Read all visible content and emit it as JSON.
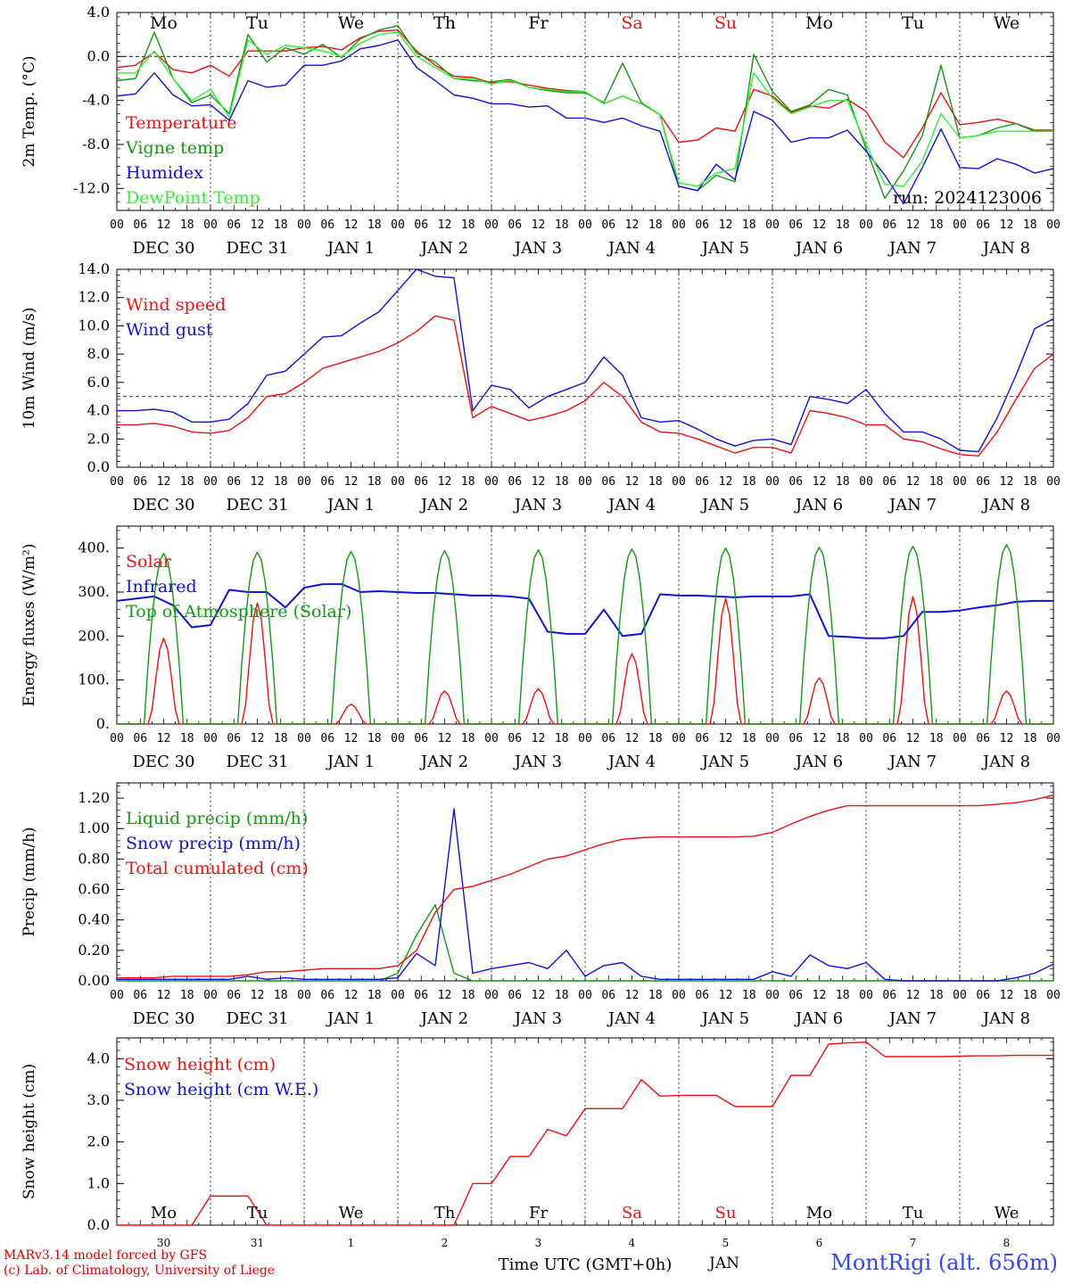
{
  "days": {
    "weekday_labels": [
      "Mo",
      "Tu",
      "We",
      "Th",
      "Fr",
      "Sa",
      "Su",
      "Mo",
      "Tu",
      "We"
    ],
    "weekend_flags": [
      false,
      false,
      false,
      false,
      false,
      true,
      true,
      false,
      false,
      false
    ],
    "date_labels": [
      "DEC 30",
      "DEC 31",
      "JAN  1",
      "JAN  2",
      "JAN  3",
      "JAN  4",
      "JAN  5",
      "JAN  6",
      "JAN  7",
      "JAN  8"
    ],
    "day_numbers": [
      "30",
      "31",
      "1",
      "2",
      "3",
      "4",
      "5",
      "6",
      "7",
      "8"
    ],
    "hour_ticks": [
      "00",
      "06",
      "12",
      "18"
    ],
    "end_tick": "00"
  },
  "colors": {
    "red": "#ee1111",
    "green": "#119911",
    "blue": "#1111dd",
    "lightgreen": "#33ee33",
    "weekday": "#000000",
    "weekend": "#ee1111"
  },
  "run_label": "run: 2024123006",
  "footer": {
    "model_line": "MARv3.14 model forced by GFS",
    "lab_line": "(c) Lab. of Climatology, University of Liege",
    "time_label": "Time UTC (GMT+0h)",
    "month_label": "JAN",
    "site_label": "MontRigi (alt. 656m)"
  },
  "chart_data": [
    {
      "type": "line",
      "ylabel": "2m Temp. (°C)",
      "ylim": [
        -14,
        4
      ],
      "y_ticks": [
        "4.0",
        "0.0",
        "-4.0",
        "-8.0",
        "-12.0"
      ],
      "reference_line": 0,
      "x_hours": "hours since Dec 30 00 UTC, every 6 h",
      "series": [
        {
          "name": "Temperature",
          "color": "red",
          "values": [
            -1.0,
            -0.8,
            0.4,
            -1.2,
            -1.5,
            -0.8,
            -1.8,
            0.5,
            0.5,
            0.5,
            0.8,
            0.9,
            0.6,
            1.7,
            2.3,
            2.4,
            0.5,
            -0.8,
            -1.8,
            -1.9,
            -2.4,
            -2.3,
            -2.6,
            -2.9,
            -3.1,
            -3.2,
            -4.3,
            -3.6,
            -4.3,
            -5.3,
            -7.8,
            -7.6,
            -6.5,
            -6.8,
            -3.0,
            -3.6,
            -5.1,
            -4.5,
            -4.7,
            -3.9,
            -5.0,
            -7.8,
            -9.2,
            -6.5,
            -3.3,
            -6.2,
            -6.0,
            -5.7,
            -6.1,
            -6.7,
            -6.7
          ]
        },
        {
          "name": "Vigne temp",
          "color": "green",
          "values": [
            -2.2,
            -2.0,
            2.2,
            -2.0,
            -4.2,
            -3.5,
            -5.2,
            2.0,
            -0.5,
            0.8,
            0.2,
            1.1,
            -0.1,
            1.6,
            2.4,
            2.8,
            0.3,
            -0.5,
            -2.0,
            -2.2,
            -2.3,
            -2.1,
            -2.8,
            -3.1,
            -3.3,
            -3.3,
            -4.2,
            -0.6,
            -4.2,
            -5.3,
            -11.8,
            -12.2,
            -10.8,
            -11.4,
            0.2,
            -3.2,
            -5.0,
            -4.4,
            -3.0,
            -3.5,
            -8.4,
            -12.9,
            -10.4,
            -7.2,
            -0.8,
            -7.4,
            -7.2,
            -6.5,
            -6.1,
            -6.8,
            -6.8
          ]
        },
        {
          "name": "Humidex",
          "color": "blue",
          "values": [
            -3.6,
            -3.4,
            -1.5,
            -3.5,
            -4.5,
            -4.4,
            -5.8,
            -2.2,
            -2.8,
            -2.6,
            -0.8,
            -0.8,
            -0.4,
            0.7,
            1.0,
            1.5,
            -1.0,
            -2.2,
            -3.5,
            -3.8,
            -4.3,
            -4.3,
            -4.6,
            -4.5,
            -5.6,
            -5.6,
            -6.0,
            -5.6,
            -6.3,
            -6.8,
            -11.8,
            -12.2,
            -9.8,
            -11.2,
            -5.0,
            -5.8,
            -7.8,
            -7.4,
            -7.4,
            -6.7,
            -8.6,
            -10.8,
            -13.4,
            -10.1,
            -6.6,
            -10.1,
            -10.2,
            -9.3,
            -9.8,
            -10.6,
            -10.2
          ]
        },
        {
          "name": "DewPoint Temp",
          "color": "lightgreen",
          "values": [
            -1.5,
            -1.5,
            0.5,
            -2.0,
            -4.0,
            -3.0,
            -5.5,
            1.5,
            0.2,
            1.0,
            0.8,
            0.5,
            0.0,
            1.2,
            2.0,
            2.2,
            0.0,
            -1.0,
            -2.0,
            -2.0,
            -2.5,
            -2.2,
            -2.8,
            -3.0,
            -3.2,
            -3.2,
            -4.3,
            -3.6,
            -4.3,
            -5.3,
            -11.5,
            -11.8,
            -10.6,
            -10.2,
            -1.5,
            -3.8,
            -5.2,
            -4.6,
            -4.0,
            -4.0,
            -8.0,
            -11.6,
            -11.8,
            -9.5,
            -5.2,
            -7.4,
            -7.2,
            -6.8,
            -6.8,
            -6.8,
            -6.8
          ]
        }
      ]
    },
    {
      "type": "line",
      "ylabel": "10m Wind (m/s)",
      "ylim": [
        0,
        14
      ],
      "y_ticks": [
        "0.0",
        "2.0",
        "4.0",
        "6.0",
        "8.0",
        "10.0",
        "12.0",
        "14.0"
      ],
      "reference_line": 5,
      "series": [
        {
          "name": "Wind speed",
          "color": "red",
          "values": [
            3.0,
            3.0,
            3.1,
            2.9,
            2.5,
            2.4,
            2.6,
            3.5,
            5.0,
            5.2,
            6.0,
            7.0,
            7.4,
            7.8,
            8.2,
            8.8,
            9.6,
            10.7,
            10.4,
            3.5,
            4.3,
            3.8,
            3.3,
            3.6,
            4.0,
            4.7,
            6.0,
            5.0,
            3.2,
            2.5,
            2.4,
            2.0,
            1.5,
            1.0,
            1.4,
            1.4,
            1.0,
            4.0,
            3.8,
            3.5,
            3.0,
            3.0,
            2.0,
            1.8,
            1.3,
            0.9,
            0.8,
            2.5,
            4.8,
            7.0,
            8.0
          ]
        },
        {
          "name": "Wind gust",
          "color": "blue",
          "values": [
            4.0,
            4.0,
            4.1,
            3.9,
            3.2,
            3.2,
            3.4,
            4.5,
            6.5,
            6.8,
            8.0,
            9.2,
            9.3,
            10.2,
            11.0,
            12.5,
            14.0,
            13.5,
            13.4,
            4.0,
            5.8,
            5.5,
            4.2,
            5.0,
            5.5,
            6.0,
            7.8,
            6.5,
            3.5,
            3.2,
            3.3,
            2.7,
            2.0,
            1.5,
            1.9,
            2.0,
            1.6,
            5.0,
            4.8,
            4.5,
            5.5,
            3.8,
            2.5,
            2.5,
            2.0,
            1.2,
            1.1,
            3.5,
            6.5,
            9.8,
            10.5
          ]
        }
      ]
    },
    {
      "type": "line",
      "ylabel": "Energy fluxes (W/m²)",
      "ylim": [
        0,
        450
      ],
      "y_ticks": [
        "0.",
        "100.",
        "200.",
        "300.",
        "400."
      ],
      "series": [
        {
          "name": "Solar",
          "color": "red",
          "peaks": [
            195,
            275,
            45,
            75,
            80,
            160,
            285,
            105,
            290,
            75
          ]
        },
        {
          "name": "Infrared",
          "color": "blue",
          "values": [
            280,
            285,
            290,
            270,
            220,
            225,
            305,
            300,
            300,
            265,
            310,
            318,
            318,
            300,
            302,
            300,
            298,
            298,
            295,
            292,
            292,
            290,
            285,
            210,
            205,
            205,
            260,
            200,
            205,
            295,
            292,
            292,
            290,
            288,
            290,
            290,
            290,
            295,
            200,
            198,
            195,
            195,
            200,
            255,
            255,
            258,
            265,
            270,
            278,
            280,
            280
          ]
        },
        {
          "name": "Top of Atmosphere (Solar)",
          "color": "green",
          "peaks": [
            388,
            390,
            392,
            394,
            396,
            398,
            400,
            402,
            404,
            408
          ]
        }
      ]
    },
    {
      "type": "line",
      "ylabel": "Precip (mm/h)",
      "ylim": [
        0,
        1.3
      ],
      "y_ticks": [
        "0.00",
        "0.20",
        "0.40",
        "0.60",
        "0.80",
        "1.00",
        "1.20"
      ],
      "series": [
        {
          "name": "Liquid precip (mm/h)",
          "color": "green",
          "values": [
            0,
            0,
            0,
            0,
            0,
            0,
            0,
            0,
            0,
            0,
            0,
            0,
            0,
            0,
            0,
            0.05,
            0.3,
            0.5,
            0.05,
            0,
            0,
            0,
            0,
            0,
            0,
            0,
            0,
            0,
            0,
            0,
            0,
            0,
            0,
            0,
            0,
            0,
            0,
            0,
            0,
            0,
            0,
            0,
            0,
            0,
            0,
            0,
            0,
            0,
            0,
            0,
            0
          ]
        },
        {
          "name": "Snow precip (mm/h)",
          "color": "blue",
          "values": [
            0.01,
            0.01,
            0.01,
            0.01,
            0.01,
            0.01,
            0.01,
            0.03,
            0.01,
            0.02,
            0.01,
            0.01,
            0.01,
            0.01,
            0.01,
            0.02,
            0.18,
            0.1,
            1.13,
            0.05,
            0.08,
            0.1,
            0.12,
            0.08,
            0.2,
            0.03,
            0.1,
            0.12,
            0.03,
            0.01,
            0.01,
            0.01,
            0.01,
            0.01,
            0.01,
            0.06,
            0.03,
            0.17,
            0.1,
            0.08,
            0.12,
            0.01,
            0,
            0,
            0,
            0,
            0,
            0,
            0.02,
            0.05,
            0.11
          ]
        },
        {
          "name": "Total cumulated (cm)",
          "color": "red",
          "values": [
            0.02,
            0.02,
            0.02,
            0.03,
            0.03,
            0.03,
            0.03,
            0.04,
            0.06,
            0.06,
            0.07,
            0.08,
            0.08,
            0.08,
            0.08,
            0.1,
            0.2,
            0.45,
            0.6,
            0.62,
            0.66,
            0.7,
            0.75,
            0.8,
            0.82,
            0.86,
            0.9,
            0.93,
            0.94,
            0.945,
            0.945,
            0.945,
            0.945,
            0.945,
            0.95,
            0.975,
            1.03,
            1.08,
            1.12,
            1.15,
            1.15,
            1.15,
            1.15,
            1.15,
            1.15,
            1.15,
            1.15,
            1.16,
            1.17,
            1.19,
            1.22
          ]
        }
      ]
    },
    {
      "type": "line",
      "ylabel": "Snow height (cm)",
      "ylim": [
        0,
        4.5
      ],
      "y_ticks": [
        "0.0",
        "1.0",
        "2.0",
        "3.0",
        "4.0"
      ],
      "series": [
        {
          "name": "Snow height (cm)",
          "color": "red",
          "values": [
            0,
            0,
            0,
            0,
            0,
            0.7,
            0.7,
            0.7,
            0,
            0,
            0,
            0,
            0,
            0,
            0,
            0,
            0,
            0,
            0,
            1.0,
            1.0,
            1.65,
            1.65,
            2.3,
            2.15,
            2.8,
            2.8,
            2.8,
            3.5,
            3.1,
            3.12,
            3.12,
            3.12,
            2.85,
            2.85,
            2.85,
            3.6,
            3.6,
            4.35,
            4.38,
            4.4,
            4.05,
            4.05,
            4.05,
            4.05,
            4.06,
            4.07,
            4.07,
            4.08,
            4.08,
            4.08
          ]
        },
        {
          "name": "Snow height (cm W.E.)",
          "color": "blue",
          "values": []
        }
      ]
    }
  ]
}
